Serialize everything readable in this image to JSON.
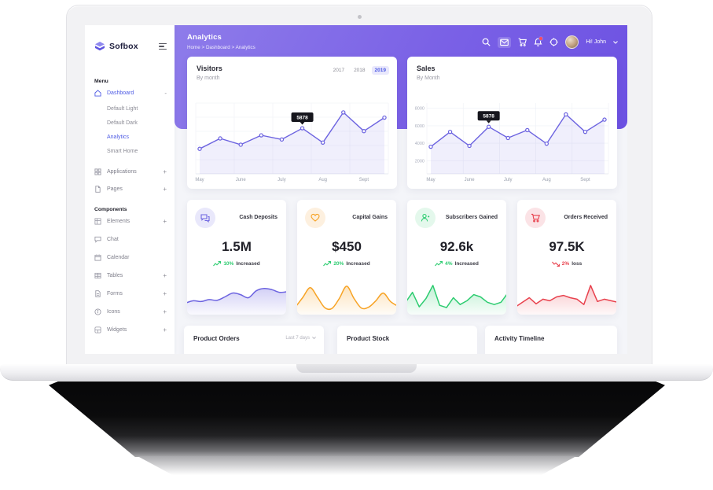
{
  "sidebar": {
    "logo": "Sofbox",
    "menu_label": "Menu",
    "components_label": "Components",
    "items": [
      {
        "label": "Dashboard",
        "suffix": "-"
      },
      {
        "label": "Applications",
        "suffix": "+"
      },
      {
        "label": "Pages",
        "suffix": "+"
      }
    ],
    "dashboard_sub": [
      {
        "label": "Default Light"
      },
      {
        "label": "Default Dark"
      },
      {
        "label": "Analytics"
      },
      {
        "label": "Smart Home"
      }
    ],
    "components": [
      {
        "label": "Elements",
        "suffix": "+"
      },
      {
        "label": "Chat",
        "suffix": ""
      },
      {
        "label": "Calendar",
        "suffix": ""
      },
      {
        "label": "Tables",
        "suffix": "+"
      },
      {
        "label": "Forms",
        "suffix": "+"
      },
      {
        "label": "Icons",
        "suffix": "+"
      },
      {
        "label": "Widgets",
        "suffix": "+"
      }
    ]
  },
  "header": {
    "title": "Analytics",
    "breadcrumb": "Home > Dashboard > Analytics",
    "user": "Hi! John"
  },
  "visitors": {
    "title": "Visitors",
    "subtitle": "By month",
    "tabs": [
      "2017",
      "2018",
      "2019"
    ],
    "active_tab": "2019"
  },
  "sales": {
    "title": "Sales",
    "subtitle": "By Month"
  },
  "stats": [
    {
      "title": "Cash Deposits",
      "value": "1.5M",
      "percent": "10%",
      "trend_label": "Increased",
      "direction": "up",
      "accent": "#6c63e0",
      "tint": "#e9e8fb",
      "pct_color": "#2dcc70"
    },
    {
      "title": "Capital Gains",
      "value": "$450",
      "percent": "20%",
      "trend_label": "Increased",
      "direction": "up",
      "accent": "#f7a325",
      "tint": "#fdf0df",
      "pct_color": "#2dcc70"
    },
    {
      "title": "Subscribers Gained",
      "value": "92.6k",
      "percent": "4%",
      "trend_label": "Increased",
      "direction": "up",
      "accent": "#2dcc70",
      "tint": "#e4f8ec",
      "pct_color": "#2dcc70"
    },
    {
      "title": "Orders Received",
      "value": "97.5K",
      "percent": "2%",
      "trend_label": "loss",
      "direction": "down",
      "accent": "#e8414d",
      "tint": "#fbe3e6",
      "pct_color": "#e8414d"
    }
  ],
  "bottom_cards": [
    {
      "title": "Product Orders",
      "filter": "Last 7 days"
    },
    {
      "title": "Product Stock"
    },
    {
      "title": "Activity Timeline"
    }
  ],
  "chart_data": [
    {
      "type": "line",
      "name": "visitors-by-month",
      "title": "Visitors",
      "x_labels": [
        "May",
        "June",
        "July",
        "Aug",
        "Sept"
      ],
      "values": [
        3900,
        4900,
        4300,
        5200,
        4800,
        5878,
        4500,
        7400,
        5600,
        6900
      ],
      "tooltip": {
        "index": 5,
        "label": "5878"
      },
      "ylim": [
        1500,
        8300
      ],
      "y_ticks": [],
      "color": "#6c63e0",
      "grid": true,
      "legend": false
    },
    {
      "type": "line",
      "name": "sales-by-month",
      "title": "Sales",
      "x_labels": [
        "May",
        "June",
        "July",
        "Aug",
        "Sept"
      ],
      "values": [
        3600,
        5300,
        3700,
        5878,
        4600,
        5500,
        3950,
        7300,
        5300,
        6700
      ],
      "tooltip": {
        "index": 3,
        "label": "5878"
      },
      "ylim": [
        500,
        8600
      ],
      "y_ticks": [
        8000,
        6000,
        4000,
        2000
      ],
      "color": "#6c63e0",
      "grid": true,
      "legend": false
    },
    {
      "type": "area",
      "name": "cash-deposits-trend",
      "values": [
        2,
        2.6,
        2.4,
        2.9,
        2.7,
        3.6,
        4.6,
        4.2,
        3.4,
        5.2,
        5.8,
        5.5,
        4.8,
        5.0
      ],
      "color": "#6c63e0",
      "smooth": true
    },
    {
      "type": "area",
      "name": "capital-gains-trend",
      "values": [
        1,
        3.5,
        6,
        3.5,
        0.8,
        0.6,
        3.2,
        6.4,
        3.2,
        0.7,
        0.9,
        2.6,
        4.6,
        2.4,
        1.2
      ],
      "color": "#f7a325",
      "smooth": true
    },
    {
      "type": "area",
      "name": "subscribers-gained-trend",
      "values": [
        2.2,
        4.8,
        1,
        3.2,
        6.6,
        1.4,
        0.8,
        3.4,
        1.6,
        2.6,
        4.2,
        3.6,
        2.2,
        1.6,
        2.2,
        4.6
      ],
      "color": "#2dcc70",
      "smooth": false
    },
    {
      "type": "area",
      "name": "orders-received-trend",
      "values": [
        1,
        2.2,
        3.4,
        1.8,
        3.0,
        2.6,
        3.6,
        4.0,
        3.4,
        3.0,
        1.6,
        6.6,
        2.4,
        3.0,
        2.6,
        2.2
      ],
      "color": "#e8414d",
      "smooth": false
    }
  ]
}
